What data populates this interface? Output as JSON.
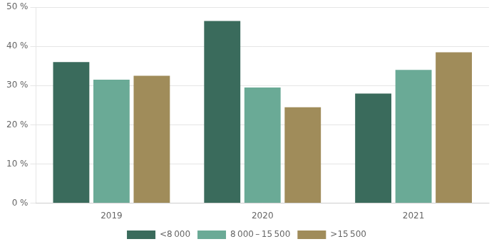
{
  "chart_data": {
    "type": "bar",
    "categories": [
      "2019",
      "2020",
      "2021"
    ],
    "series": [
      {
        "name": "<8 000",
        "color": "#3a6b5c",
        "values": [
          36.0,
          46.5,
          28.0
        ]
      },
      {
        "name": "8 000 – 15 500",
        "color": "#6aaa96",
        "values": [
          31.5,
          29.5,
          34.0
        ]
      },
      {
        "name": ">15 500",
        "color": "#a08c5a",
        "values": [
          32.5,
          24.5,
          38.5
        ]
      }
    ],
    "ylim": [
      0,
      50
    ],
    "yticks": [
      {
        "value": 0,
        "label": "0 %"
      },
      {
        "value": 10,
        "label": "10 %"
      },
      {
        "value": 20,
        "label": "20 %"
      },
      {
        "value": 30,
        "label": "30 %"
      },
      {
        "value": 40,
        "label": "40 %"
      },
      {
        "value": 50,
        "label": "50 %"
      }
    ],
    "grid": true,
    "legend": "bottom"
  }
}
